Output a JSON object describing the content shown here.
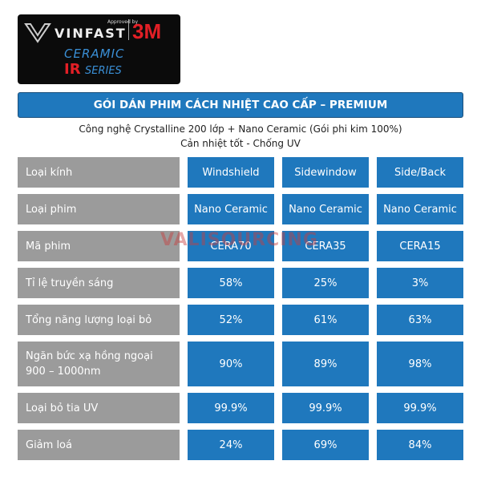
{
  "logo": {
    "approved": "Approved by",
    "brand": "VINFAST",
    "partner": "3M",
    "line1": "CERAMIC",
    "ir": "IR",
    "series": "SERIES"
  },
  "header": {
    "title": "GÓI DÁN PHIM CÁCH NHIỆT CAO CẤP – PREMIUM",
    "subtitle": [
      "Công nghệ Crystalline 200 lớp + Nano Ceramic (Gói phi kim 100%)",
      "Cản nhiệt tốt - Chống UV"
    ]
  },
  "watermark": "VALISOURCING",
  "table": {
    "rows": [
      [
        "Loại kính",
        "Windshield",
        "Sidewindow",
        "Side/Back"
      ],
      [
        "Loại phim",
        "Nano Ceramic",
        "Nano Ceramic",
        "Nano Ceramic"
      ],
      [
        "Mã phim",
        "CERA70",
        "CERA35",
        "CERA15"
      ],
      [
        "Tỉ lệ truyền sáng",
        "58%",
        "25%",
        "3%"
      ],
      [
        "Tổng năng lượng loại bỏ",
        "52%",
        "61%",
        "63%"
      ],
      [
        "Ngăn bức xạ hồng ngoại 900 – 1000nm",
        "90%",
        "89%",
        "98%"
      ],
      [
        "Loại bỏ tia UV",
        "99.9%",
        "99.9%",
        "99.9%"
      ],
      [
        "Giảm loá",
        "24%",
        "69%",
        "84%"
      ]
    ]
  }
}
